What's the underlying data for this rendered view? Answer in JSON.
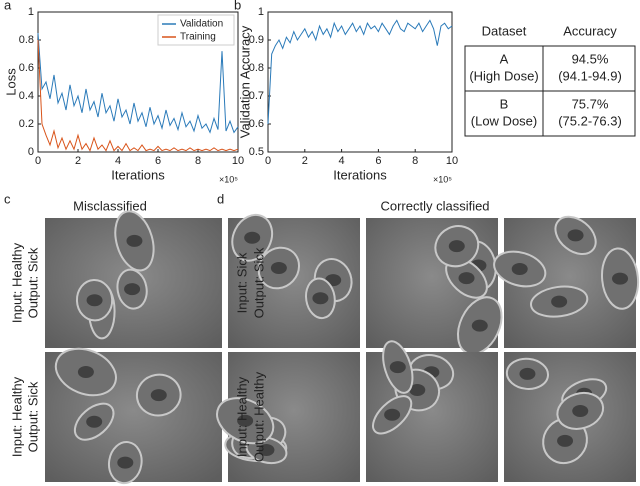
{
  "chart_data": [
    {
      "type": "line",
      "panel_label": "a",
      "x_label": "Iterations",
      "y_label": "Loss",
      "x_multiplier": "×10⁵",
      "x": [
        0,
        0.2,
        0.4,
        0.6,
        0.8,
        1,
        1.2,
        1.4,
        1.6,
        1.8,
        2,
        2.2,
        2.4,
        2.6,
        2.8,
        3,
        3.2,
        3.4,
        3.6,
        3.8,
        4,
        4.2,
        4.4,
        4.6,
        4.8,
        5,
        5.2,
        5.4,
        5.6,
        5.8,
        6,
        6.2,
        6.4,
        6.6,
        6.8,
        7,
        7.2,
        7.4,
        7.6,
        7.8,
        8,
        8.2,
        8.4,
        8.6,
        8.8,
        9,
        9.2,
        9.4,
        9.6,
        9.8,
        10
      ],
      "series": [
        {
          "name": "Validation",
          "color": "#2a7ab9",
          "values": [
            0.85,
            0.45,
            0.5,
            0.38,
            0.55,
            0.35,
            0.42,
            0.3,
            0.48,
            0.33,
            0.4,
            0.28,
            0.45,
            0.3,
            0.36,
            0.25,
            0.42,
            0.28,
            0.33,
            0.22,
            0.38,
            0.25,
            0.3,
            0.2,
            0.35,
            0.22,
            0.28,
            0.18,
            0.32,
            0.2,
            0.26,
            0.17,
            0.3,
            0.19,
            0.24,
            0.16,
            0.28,
            0.18,
            0.22,
            0.15,
            0.26,
            0.17,
            0.2,
            0.14,
            0.24,
            0.16,
            0.72,
            0.15,
            0.22,
            0.14,
            0.18
          ]
        },
        {
          "name": "Training",
          "color": "#d9541a",
          "values": [
            0.8,
            0.2,
            0.12,
            0.05,
            0.15,
            0.03,
            0.1,
            0.02,
            0.08,
            0.02,
            0.12,
            0.02,
            0.06,
            0.01,
            0.1,
            0.02,
            0.05,
            0.01,
            0.08,
            0.01,
            0.04,
            0.01,
            0.06,
            0.01,
            0.03,
            0.01,
            0.05,
            0.01,
            0.02,
            0.01,
            0.04,
            0.01,
            0.02,
            0.01,
            0.03,
            0.01,
            0.02,
            0.01,
            0.03,
            0.01,
            0.02,
            0.01,
            0.02,
            0.01,
            0.03,
            0.01,
            0.02,
            0.01,
            0.02,
            0.01,
            0.02
          ]
        }
      ],
      "xlim": [
        0,
        10
      ],
      "xticks": [
        0,
        2,
        4,
        6,
        8,
        10
      ],
      "ylim": [
        0,
        1
      ],
      "yticks": [
        0,
        0.2,
        0.4,
        0.6,
        0.8,
        1
      ],
      "legend": "north-east"
    },
    {
      "type": "line",
      "panel_label": "b",
      "x_label": "Iterations",
      "y_label": "Validation Accuracy",
      "x_multiplier": "×10⁵",
      "x": [
        0,
        0.2,
        0.4,
        0.6,
        0.8,
        1,
        1.2,
        1.4,
        1.6,
        1.8,
        2,
        2.2,
        2.4,
        2.6,
        2.8,
        3,
        3.2,
        3.4,
        3.6,
        3.8,
        4,
        4.2,
        4.4,
        4.6,
        4.8,
        5,
        5.2,
        5.4,
        5.6,
        5.8,
        6,
        6.2,
        6.4,
        6.6,
        6.8,
        7,
        7.2,
        7.4,
        7.6,
        7.8,
        8,
        8.2,
        8.4,
        8.6,
        8.8,
        9,
        9.2,
        9.4,
        9.6,
        9.8,
        10
      ],
      "series": [
        {
          "color": "#2a7ab9",
          "values": [
            0.6,
            0.85,
            0.88,
            0.9,
            0.87,
            0.91,
            0.89,
            0.93,
            0.9,
            0.92,
            0.94,
            0.91,
            0.93,
            0.9,
            0.95,
            0.92,
            0.94,
            0.91,
            0.96,
            0.93,
            0.95,
            0.92,
            0.94,
            0.96,
            0.93,
            0.95,
            0.92,
            0.96,
            0.94,
            0.95,
            0.93,
            0.96,
            0.94,
            0.92,
            0.95,
            0.97,
            0.94,
            0.93,
            0.96,
            0.95,
            0.94,
            0.96,
            0.93,
            0.95,
            0.97,
            0.94,
            0.88,
            0.95,
            0.96,
            0.94,
            0.95
          ]
        }
      ],
      "xlim": [
        0,
        10
      ],
      "xticks": [
        0,
        2,
        4,
        6,
        8,
        10
      ],
      "ylim": [
        0.5,
        1
      ],
      "yticks": [
        0.5,
        0.6,
        0.7,
        0.8,
        0.9,
        1
      ]
    }
  ],
  "table": {
    "header": [
      "Dataset",
      "Accuracy"
    ],
    "rows": [
      [
        [
          "A",
          "(High Dose)"
        ],
        [
          "94.5%",
          "(94.1-94.9)"
        ]
      ],
      [
        [
          "B",
          "(Low Dose)"
        ],
        [
          "75.7%",
          "(75.2-76.3)"
        ]
      ]
    ]
  },
  "panels": [
    {
      "label": "c",
      "title": "Misclassified",
      "rows": [
        [
          "Input: Healthy",
          "Output: Sick"
        ],
        [
          "Input: Healthy",
          "Output: Sick"
        ]
      ]
    },
    {
      "label": "d",
      "title": "Correctly classified",
      "rows": [
        [
          "Input: Sick",
          "Output: Sick"
        ],
        [
          "Input: Healthy",
          "Output: Healthy"
        ]
      ]
    }
  ]
}
